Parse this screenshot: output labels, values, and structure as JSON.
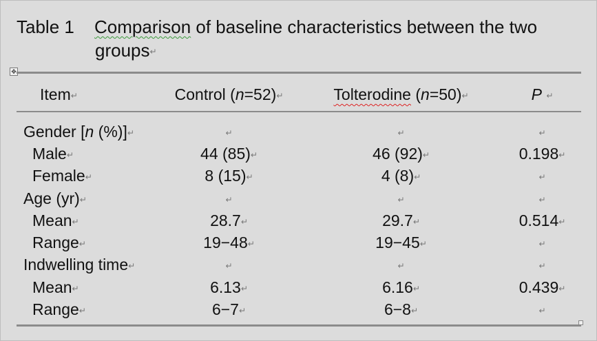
{
  "table": {
    "title": {
      "label": "Table 1",
      "text_a": "Comparison",
      "text_b": " of baseline characteristics between the two",
      "text_line2": "groups"
    },
    "header": {
      "item": "Item",
      "control_pre": "Control (",
      "control_n": "n",
      "control_post": "=52)",
      "tol_name": "Tolterodine",
      "tol_pre": " (",
      "tol_n": "n",
      "tol_post": "=50)",
      "p": "P"
    },
    "rows": [
      {
        "item": "Gender [",
        "item_n": "n",
        "item_post": " (%)]",
        "control": "",
        "tolterodine": "",
        "p": ""
      },
      {
        "item": "Male",
        "control": "44 (85)",
        "tolterodine": "46 (92)",
        "p": "0.198"
      },
      {
        "item": "Female",
        "control": "8 (15)",
        "tolterodine": "4 (8)",
        "p": ""
      },
      {
        "item": "Age (yr)",
        "control": "",
        "tolterodine": "",
        "p": ""
      },
      {
        "item": "Mean",
        "control": "28.7",
        "tolterodine": "29.7",
        "p": "0.514"
      },
      {
        "item": "Range",
        "control": "19−48",
        "tolterodine": "19−45",
        "p": ""
      },
      {
        "item": "Indwelling time",
        "control": "",
        "tolterodine": "",
        "p": ""
      },
      {
        "item": "Mean",
        "control": "6.13",
        "tolterodine": "6.16",
        "p": "0.439"
      },
      {
        "item": "Range",
        "control": "6−7",
        "tolterodine": "6−8",
        "p": ""
      }
    ],
    "marks": {
      "paragraph": "↵",
      "anchor": "✥"
    }
  }
}
